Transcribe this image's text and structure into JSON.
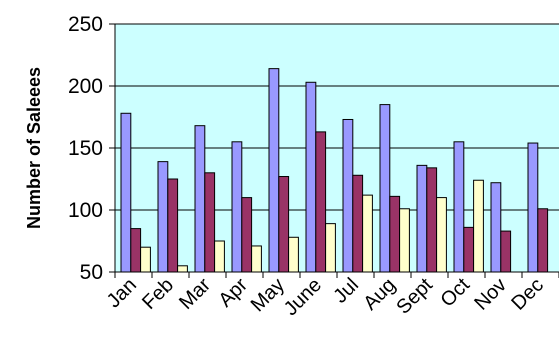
{
  "chart_data": {
    "type": "bar",
    "title": "",
    "xlabel": "",
    "ylabel": "Number of Saleees",
    "ylim": [
      50,
      250
    ],
    "yticks": [
      50,
      100,
      150,
      200,
      250
    ],
    "grid": true,
    "categories": [
      "Jan",
      "Feb",
      "Mar",
      "Apr",
      "May",
      "June",
      "Jul",
      "Aug",
      "Sept",
      "Oct",
      "Nov",
      "Dec"
    ],
    "series": [
      {
        "values": [
          178,
          139,
          168,
          155,
          214,
          203,
          173,
          185,
          136,
          155,
          122,
          154
        ],
        "color": "#9999FF"
      },
      {
        "values": [
          85,
          125,
          130,
          110,
          127,
          163,
          128,
          111,
          134,
          86,
          83,
          101
        ],
        "color": "#993366"
      },
      {
        "values": [
          70,
          55,
          75,
          71,
          78,
          89,
          112,
          101,
          110,
          124,
          null,
          null
        ],
        "color": "#FFFFCC"
      }
    ],
    "plot_background": "#CCFFFF"
  }
}
